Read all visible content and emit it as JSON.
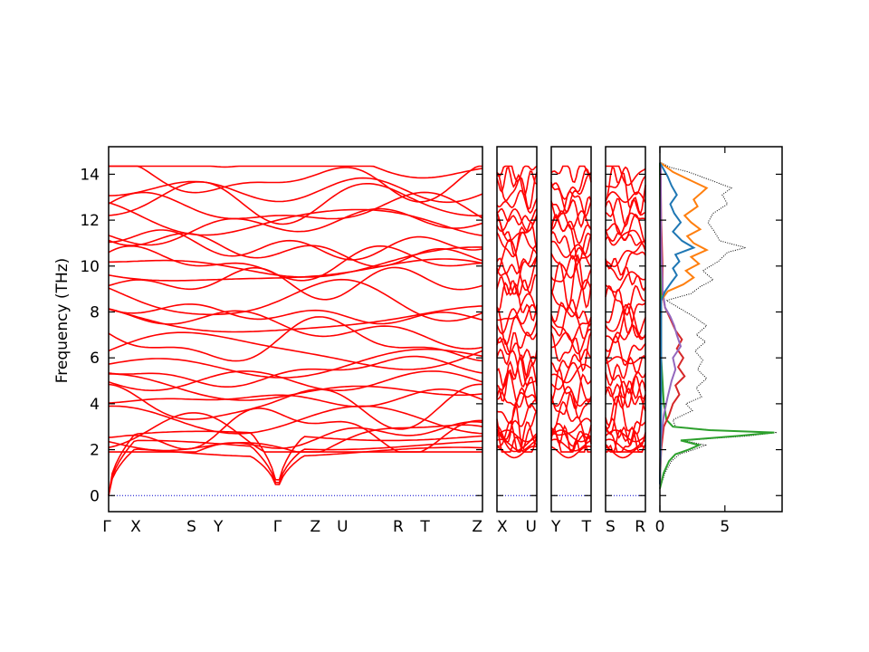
{
  "chart_data": [
    {
      "type": "line",
      "panel": "band-structure",
      "ylabel": "Frequency (THz)",
      "ylim": [
        -0.7,
        15.2
      ],
      "yticks": [
        0,
        2,
        4,
        6,
        8,
        10,
        12,
        14
      ],
      "band_color": "#ff0000",
      "zero_line_color": "#0000cc",
      "segments": [
        {
          "labels": [
            "Γ",
            "X",
            "S",
            "Y",
            "Γ",
            "Z",
            "U",
            "R",
            "T",
            "Z"
          ],
          "positions": [
            0,
            0.0725,
            0.2215,
            0.2935,
            0.4515,
            0.553,
            0.6255,
            0.7745,
            0.8465,
            1.0
          ]
        },
        {
          "labels": [
            "X",
            "U"
          ],
          "positions": [
            0,
            1.0
          ]
        },
        {
          "labels": [
            "Y",
            "T"
          ],
          "positions": [
            0,
            1.0
          ]
        },
        {
          "labels": [
            "S",
            "R"
          ],
          "positions": [
            0,
            1.0
          ]
        }
      ],
      "acoustic_top": [
        2.6,
        2.2,
        1.9
      ],
      "optical_levels": [
        1.95,
        2.3,
        2.55,
        2.9,
        3.3,
        3.9,
        4.2,
        4.6,
        5.0,
        5.4,
        5.9,
        6.3,
        6.7,
        7.3,
        7.6,
        8.0,
        8.5,
        9.3,
        9.7,
        10.1,
        10.5,
        10.9,
        11.3,
        11.6,
        12.0,
        12.4,
        12.8,
        13.3,
        13.7,
        14.2
      ]
    },
    {
      "type": "line",
      "panel": "dos",
      "xlim": [
        0,
        9.4
      ],
      "xticks": [
        0,
        5
      ],
      "ylim": [
        -0.7,
        15.2
      ],
      "series": [
        {
          "name": "",
          "color": "#000000",
          "style": "dotted",
          "points": [
            [
              0,
              0.3
            ],
            [
              0.4,
              1.0
            ],
            [
              0.9,
              1.5
            ],
            [
              1.5,
              1.8
            ],
            [
              2.6,
              2.0
            ],
            [
              3.5,
              2.2
            ],
            [
              1.8,
              2.4
            ],
            [
              6.8,
              2.6
            ],
            [
              9.0,
              2.75
            ],
            [
              4.0,
              2.85
            ],
            [
              1.2,
              3.0
            ],
            [
              1.0,
              3.3
            ],
            [
              2.5,
              3.7
            ],
            [
              2.0,
              4.0
            ],
            [
              3.2,
              4.3
            ],
            [
              2.8,
              4.7
            ],
            [
              3.6,
              5.1
            ],
            [
              2.9,
              5.5
            ],
            [
              3.3,
              5.9
            ],
            [
              2.7,
              6.3
            ],
            [
              3.5,
              6.7
            ],
            [
              2.8,
              7.0
            ],
            [
              3.6,
              7.4
            ],
            [
              2.6,
              7.8
            ],
            [
              1.4,
              8.2
            ],
            [
              0.5,
              8.5
            ],
            [
              2.4,
              8.8
            ],
            [
              3.1,
              9.1
            ],
            [
              4.1,
              9.4
            ],
            [
              3.3,
              9.8
            ],
            [
              4.5,
              10.2
            ],
            [
              5.2,
              10.6
            ],
            [
              6.6,
              10.8
            ],
            [
              4.6,
              11.1
            ],
            [
              4.2,
              11.5
            ],
            [
              3.7,
              11.9
            ],
            [
              4.1,
              12.3
            ],
            [
              5.2,
              12.7
            ],
            [
              4.8,
              13.1
            ],
            [
              5.5,
              13.4
            ],
            [
              4.1,
              13.7
            ],
            [
              2.2,
              14.1
            ],
            [
              0.8,
              14.3
            ],
            [
              0.1,
              14.5
            ]
          ]
        },
        {
          "name": "",
          "color": "#2ca02c",
          "style": "solid",
          "points": [
            [
              0,
              0.3
            ],
            [
              0.3,
              1.0
            ],
            [
              0.7,
              1.5
            ],
            [
              1.2,
              1.8
            ],
            [
              2.2,
              2.0
            ],
            [
              3.0,
              2.2
            ],
            [
              1.6,
              2.4
            ],
            [
              6.0,
              2.6
            ],
            [
              8.8,
              2.75
            ],
            [
              3.8,
              2.85
            ],
            [
              1.0,
              3.0
            ],
            [
              0.5,
              3.3
            ],
            [
              0.4,
              3.7
            ],
            [
              0.3,
              4.0
            ],
            [
              0.2,
              5.0
            ],
            [
              0.1,
              6.0
            ],
            [
              0.1,
              8.4
            ],
            [
              0.05,
              10.0
            ],
            [
              0.0,
              14.5
            ]
          ]
        },
        {
          "name": "",
          "color": "#d62728",
          "style": "solid",
          "points": [
            [
              0,
              0.5
            ],
            [
              0.1,
              2.0
            ],
            [
              0.3,
              3.0
            ],
            [
              0.7,
              3.5
            ],
            [
              1.0,
              4.0
            ],
            [
              1.5,
              4.4
            ],
            [
              1.2,
              4.8
            ],
            [
              1.9,
              5.2
            ],
            [
              1.4,
              5.6
            ],
            [
              1.8,
              6.0
            ],
            [
              1.3,
              6.4
            ],
            [
              1.7,
              6.8
            ],
            [
              1.2,
              7.2
            ],
            [
              0.8,
              7.7
            ],
            [
              0.4,
              8.2
            ],
            [
              0.2,
              8.8
            ],
            [
              0.2,
              10.0
            ],
            [
              0.1,
              12.0
            ],
            [
              0.05,
              14.5
            ]
          ]
        },
        {
          "name": "",
          "color": "#9467bd",
          "style": "solid",
          "points": [
            [
              0,
              0.5
            ],
            [
              0.1,
              2.5
            ],
            [
              0.3,
              3.5
            ],
            [
              0.6,
              4.3
            ],
            [
              0.9,
              5.0
            ],
            [
              1.2,
              5.5
            ],
            [
              1.0,
              6.0
            ],
            [
              1.6,
              6.5
            ],
            [
              1.3,
              7.0
            ],
            [
              1.1,
              7.4
            ],
            [
              0.8,
              7.8
            ],
            [
              0.4,
              8.2
            ],
            [
              0.2,
              9.0
            ],
            [
              0.1,
              11.0
            ],
            [
              0.05,
              14.5
            ]
          ]
        },
        {
          "name": "",
          "color": "#ff7f0e",
          "style": "solid",
          "points": [
            [
              0,
              0.5
            ],
            [
              0.1,
              4.0
            ],
            [
              0.1,
              8.5
            ],
            [
              0.6,
              8.9
            ],
            [
              1.8,
              9.2
            ],
            [
              2.6,
              9.5
            ],
            [
              2.0,
              9.8
            ],
            [
              3.0,
              10.1
            ],
            [
              2.4,
              10.4
            ],
            [
              3.6,
              10.7
            ],
            [
              2.6,
              11.0
            ],
            [
              2.1,
              11.3
            ],
            [
              3.1,
              11.6
            ],
            [
              2.4,
              11.9
            ],
            [
              1.9,
              12.2
            ],
            [
              2.9,
              12.6
            ],
            [
              2.6,
              12.9
            ],
            [
              3.2,
              13.2
            ],
            [
              3.6,
              13.4
            ],
            [
              2.1,
              13.8
            ],
            [
              1.0,
              14.1
            ],
            [
              0.3,
              14.4
            ],
            [
              0.0,
              14.5
            ]
          ]
        },
        {
          "name": "",
          "color": "#1f77b4",
          "style": "solid",
          "points": [
            [
              0,
              0.5
            ],
            [
              0.1,
              4.0
            ],
            [
              0.1,
              8.5
            ],
            [
              0.4,
              8.9
            ],
            [
              0.9,
              9.3
            ],
            [
              1.3,
              9.6
            ],
            [
              1.0,
              9.9
            ],
            [
              1.5,
              10.2
            ],
            [
              1.2,
              10.5
            ],
            [
              2.6,
              10.8
            ],
            [
              1.7,
              11.1
            ],
            [
              1.0,
              11.5
            ],
            [
              1.6,
              11.9
            ],
            [
              1.1,
              12.3
            ],
            [
              0.8,
              12.7
            ],
            [
              1.3,
              13.1
            ],
            [
              0.9,
              13.5
            ],
            [
              0.6,
              13.9
            ],
            [
              0.3,
              14.2
            ],
            [
              0.0,
              14.5
            ]
          ]
        }
      ]
    }
  ]
}
